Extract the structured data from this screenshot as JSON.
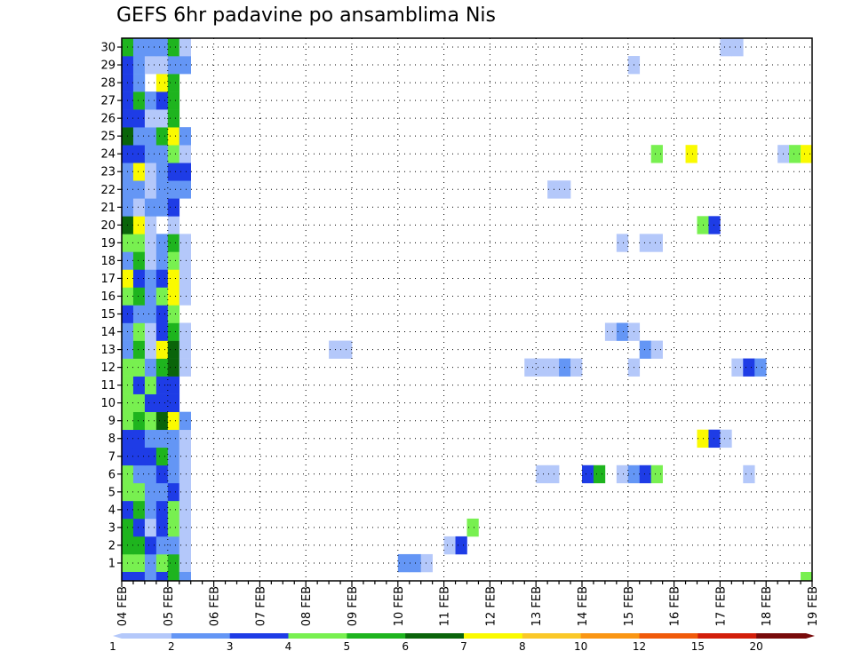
{
  "chart_data": {
    "type": "heatmap",
    "title": "GEFS 6hr padavine po ansamblima Nis",
    "xlabel": "",
    "ylabel": "",
    "x_tick_labels": [
      "04 FEB",
      "05 FEB",
      "06 FEB",
      "07 FEB",
      "08 FEB",
      "09 FEB",
      "10 FEB",
      "11 FEB",
      "12 FEB",
      "13 FEB",
      "14 FEB",
      "15 FEB",
      "16 FEB",
      "17 FEB",
      "18 FEB",
      "19 FEB"
    ],
    "y_tick_labels": [
      "1",
      "2",
      "3",
      "4",
      "5",
      "6",
      "7",
      "8",
      "9",
      "10",
      "11",
      "12",
      "13",
      "14",
      "15",
      "16",
      "17",
      "18",
      "19",
      "20",
      "21",
      "22",
      "23",
      "24",
      "25",
      "26",
      "27",
      "28",
      "29",
      "30"
    ],
    "x_steps": 60,
    "step_hours": 6,
    "members": 30,
    "grid": true,
    "colorbar": {
      "levels": [
        "1",
        "2",
        "3",
        "4",
        "5",
        "6",
        "7",
        "8",
        "10",
        "12",
        "15",
        "20"
      ],
      "colors": [
        "#b4c8fa",
        "#6496f5",
        "#1e3ce6",
        "#78f050",
        "#1eb41e",
        "#0a640a",
        "#fafa00",
        "#fac828",
        "#fa9614",
        "#f05a0a",
        "#d21e0a",
        "#780a0a"
      ]
    },
    "cells": [
      [
        0,
        1,
        4
      ],
      [
        1,
        1,
        4
      ],
      [
        2,
        1,
        2
      ],
      [
        3,
        1,
        4
      ],
      [
        4,
        1,
        5
      ],
      [
        5,
        1,
        1
      ],
      [
        0,
        2,
        5
      ],
      [
        1,
        2,
        5
      ],
      [
        2,
        2,
        3
      ],
      [
        3,
        2,
        2
      ],
      [
        4,
        2,
        2
      ],
      [
        5,
        2,
        1
      ],
      [
        0,
        3,
        5
      ],
      [
        1,
        3,
        3
      ],
      [
        2,
        3,
        1
      ],
      [
        3,
        3,
        3
      ],
      [
        4,
        3,
        4
      ],
      [
        5,
        3,
        1
      ],
      [
        0,
        4,
        3
      ],
      [
        1,
        4,
        5
      ],
      [
        2,
        4,
        2
      ],
      [
        3,
        4,
        3
      ],
      [
        4,
        4,
        4
      ],
      [
        5,
        4,
        1
      ],
      [
        0,
        5,
        4
      ],
      [
        1,
        5,
        4
      ],
      [
        2,
        5,
        2
      ],
      [
        3,
        5,
        2
      ],
      [
        4,
        5,
        3
      ],
      [
        5,
        5,
        1
      ],
      [
        0,
        6,
        4
      ],
      [
        1,
        6,
        2
      ],
      [
        2,
        6,
        2
      ],
      [
        3,
        6,
        3
      ],
      [
        4,
        6,
        2
      ],
      [
        5,
        6,
        1
      ],
      [
        0,
        7,
        3
      ],
      [
        1,
        7,
        3
      ],
      [
        2,
        7,
        3
      ],
      [
        3,
        7,
        5
      ],
      [
        4,
        7,
        2
      ],
      [
        5,
        7,
        1
      ],
      [
        0,
        8,
        3
      ],
      [
        1,
        8,
        3
      ],
      [
        2,
        8,
        2
      ],
      [
        3,
        8,
        2
      ],
      [
        4,
        8,
        2
      ],
      [
        5,
        8,
        1
      ],
      [
        0,
        9,
        4
      ],
      [
        1,
        9,
        5
      ],
      [
        2,
        9,
        4
      ],
      [
        3,
        9,
        6
      ],
      [
        4,
        9,
        7
      ],
      [
        5,
        9,
        2
      ],
      [
        0,
        10,
        4
      ],
      [
        1,
        10,
        4
      ],
      [
        2,
        10,
        3
      ],
      [
        3,
        10,
        3
      ],
      [
        4,
        10,
        3
      ],
      [
        0,
        11,
        4
      ],
      [
        1,
        11,
        3
      ],
      [
        2,
        11,
        4
      ],
      [
        3,
        11,
        3
      ],
      [
        4,
        11,
        3
      ],
      [
        0,
        12,
        4
      ],
      [
        1,
        12,
        4
      ],
      [
        2,
        12,
        2
      ],
      [
        3,
        12,
        5
      ],
      [
        4,
        12,
        6
      ],
      [
        5,
        12,
        1
      ],
      [
        0,
        13,
        2
      ],
      [
        1,
        13,
        5
      ],
      [
        2,
        13,
        1
      ],
      [
        3,
        13,
        7
      ],
      [
        4,
        13,
        6
      ],
      [
        5,
        13,
        1
      ],
      [
        0,
        14,
        2
      ],
      [
        1,
        14,
        4
      ],
      [
        2,
        14,
        1
      ],
      [
        3,
        14,
        3
      ],
      [
        4,
        14,
        5
      ],
      [
        5,
        14,
        1
      ],
      [
        0,
        15,
        3
      ],
      [
        1,
        15,
        2
      ],
      [
        2,
        15,
        2
      ],
      [
        3,
        15,
        3
      ],
      [
        4,
        15,
        4
      ],
      [
        0,
        16,
        4
      ],
      [
        1,
        16,
        5
      ],
      [
        2,
        16,
        2
      ],
      [
        3,
        16,
        4
      ],
      [
        4,
        16,
        7
      ],
      [
        5,
        16,
        1
      ],
      [
        0,
        17,
        7
      ],
      [
        1,
        17,
        3
      ],
      [
        2,
        17,
        2
      ],
      [
        3,
        17,
        3
      ],
      [
        4,
        17,
        7
      ],
      [
        5,
        17,
        1
      ],
      [
        0,
        18,
        2
      ],
      [
        1,
        18,
        5
      ],
      [
        2,
        18,
        1
      ],
      [
        3,
        18,
        2
      ],
      [
        4,
        18,
        4
      ],
      [
        5,
        18,
        1
      ],
      [
        0,
        19,
        4
      ],
      [
        1,
        19,
        4
      ],
      [
        2,
        19,
        1
      ],
      [
        3,
        19,
        2
      ],
      [
        4,
        19,
        5
      ],
      [
        5,
        19,
        1
      ],
      [
        0,
        20,
        6
      ],
      [
        1,
        20,
        7
      ],
      [
        2,
        20,
        1
      ],
      [
        4,
        20,
        1
      ],
      [
        0,
        21,
        2
      ],
      [
        1,
        21,
        1
      ],
      [
        2,
        21,
        2
      ],
      [
        3,
        21,
        2
      ],
      [
        4,
        21,
        3
      ],
      [
        0,
        22,
        2
      ],
      [
        1,
        22,
        2
      ],
      [
        2,
        22,
        1
      ],
      [
        3,
        22,
        2
      ],
      [
        4,
        22,
        2
      ],
      [
        5,
        22,
        2
      ],
      [
        0,
        23,
        2
      ],
      [
        1,
        23,
        7
      ],
      [
        2,
        23,
        1
      ],
      [
        3,
        23,
        2
      ],
      [
        4,
        23,
        3
      ],
      [
        5,
        23,
        3
      ],
      [
        0,
        24,
        3
      ],
      [
        1,
        24,
        3
      ],
      [
        2,
        24,
        2
      ],
      [
        3,
        24,
        2
      ],
      [
        4,
        24,
        4
      ],
      [
        5,
        24,
        1
      ],
      [
        0,
        25,
        6
      ],
      [
        1,
        25,
        2
      ],
      [
        2,
        25,
        2
      ],
      [
        3,
        25,
        5
      ],
      [
        4,
        25,
        7
      ],
      [
        5,
        25,
        2
      ],
      [
        0,
        26,
        3
      ],
      [
        1,
        26,
        3
      ],
      [
        2,
        26,
        1
      ],
      [
        3,
        26,
        1
      ],
      [
        4,
        26,
        5
      ],
      [
        0,
        27,
        3
      ],
      [
        1,
        27,
        5
      ],
      [
        2,
        27,
        2
      ],
      [
        3,
        27,
        3
      ],
      [
        4,
        27,
        5
      ],
      [
        0,
        28,
        3
      ],
      [
        1,
        28,
        2
      ],
      [
        3,
        28,
        7
      ],
      [
        4,
        28,
        5
      ],
      [
        0,
        29,
        3
      ],
      [
        1,
        29,
        2
      ],
      [
        2,
        29,
        1
      ],
      [
        3,
        29,
        1
      ],
      [
        4,
        29,
        2
      ],
      [
        5,
        29,
        2
      ],
      [
        0,
        30,
        5
      ],
      [
        1,
        30,
        2
      ],
      [
        2,
        30,
        2
      ],
      [
        3,
        30,
        2
      ],
      [
        4,
        30,
        5
      ],
      [
        5,
        30,
        1
      ],
      [
        0,
        0,
        3
      ],
      [
        1,
        0,
        3
      ],
      [
        2,
        0,
        2
      ],
      [
        3,
        0,
        3
      ],
      [
        4,
        0,
        5
      ],
      [
        5,
        0,
        2
      ],
      [
        24,
        1,
        2
      ],
      [
        25,
        1,
        2
      ],
      [
        26,
        1,
        1
      ],
      [
        28,
        2,
        1
      ],
      [
        29,
        2,
        3
      ],
      [
        30,
        3,
        4
      ],
      [
        36,
        6,
        1
      ],
      [
        37,
        6,
        1
      ],
      [
        40,
        6,
        3
      ],
      [
        41,
        6,
        5
      ],
      [
        43,
        6,
        1
      ],
      [
        44,
        6,
        2
      ],
      [
        45,
        6,
        3
      ],
      [
        46,
        6,
        4
      ],
      [
        54,
        6,
        1
      ],
      [
        50,
        8,
        7
      ],
      [
        51,
        8,
        3
      ],
      [
        52,
        8,
        1
      ],
      [
        18,
        13,
        1
      ],
      [
        19,
        13,
        1
      ],
      [
        45,
        13,
        2
      ],
      [
        46,
        13,
        1
      ],
      [
        35,
        12,
        1
      ],
      [
        36,
        12,
        1
      ],
      [
        37,
        12,
        1
      ],
      [
        38,
        12,
        2
      ],
      [
        39,
        12,
        1
      ],
      [
        44,
        12,
        1
      ],
      [
        53,
        12,
        1
      ],
      [
        54,
        12,
        3
      ],
      [
        55,
        12,
        2
      ],
      [
        42,
        14,
        1
      ],
      [
        43,
        14,
        2
      ],
      [
        44,
        14,
        1
      ],
      [
        43,
        19,
        1
      ],
      [
        45,
        19,
        1
      ],
      [
        46,
        19,
        1
      ],
      [
        50,
        20,
        4
      ],
      [
        51,
        20,
        3
      ],
      [
        37,
        22,
        1
      ],
      [
        38,
        22,
        1
      ],
      [
        46,
        24,
        4
      ],
      [
        49,
        24,
        7
      ],
      [
        57,
        24,
        1
      ],
      [
        58,
        24,
        4
      ],
      [
        59,
        24,
        7
      ],
      [
        44,
        29,
        1
      ],
      [
        52,
        30,
        1
      ],
      [
        53,
        30,
        1
      ],
      [
        59,
        0,
        4
      ]
    ]
  }
}
